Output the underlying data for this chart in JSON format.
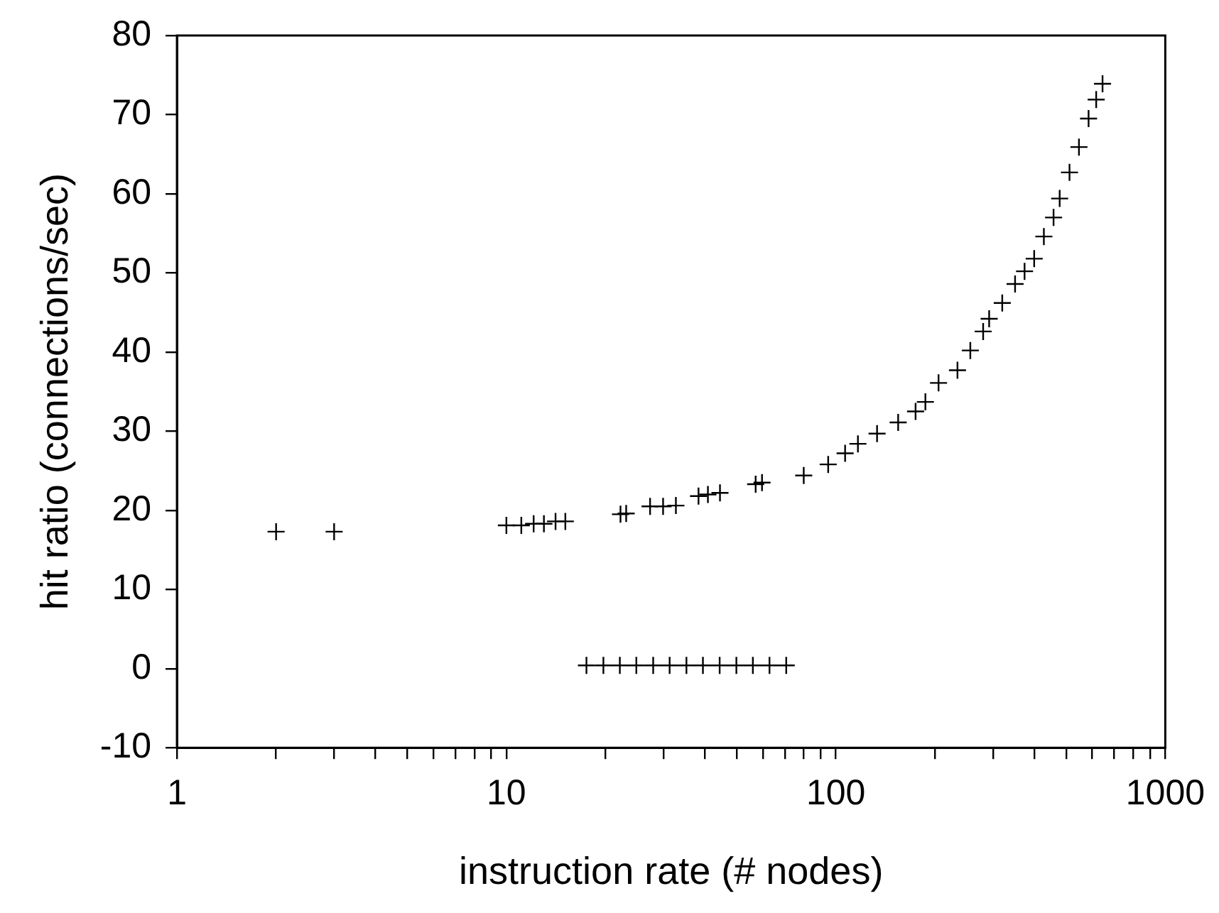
{
  "chart_data": {
    "type": "scatter",
    "xlabel": "instruction rate (# nodes)",
    "ylabel": "hit ratio (connections/sec)",
    "log": "x",
    "grid": false,
    "legend": false,
    "marker": "cross",
    "xlim": [
      1,
      1000
    ],
    "ylim": [
      -10,
      80
    ],
    "xticks": [
      1,
      {
        "value": 2,
        "label": null
      },
      {
        "value": 3,
        "label": null
      },
      {
        "value": 4,
        "label": null
      },
      {
        "value": 5,
        "label": null
      },
      {
        "value": 6,
        "label": null
      },
      {
        "value": 7,
        "label": null
      },
      {
        "value": 8,
        "label": null
      },
      {
        "value": 9,
        "label": null
      },
      10,
      {
        "value": 20,
        "label": null
      },
      {
        "value": 30,
        "label": null
      },
      {
        "value": 40,
        "label": null
      },
      {
        "value": 50,
        "label": null
      },
      {
        "value": 60,
        "label": null
      },
      {
        "value": 70,
        "label": null
      },
      {
        "value": 80,
        "label": null
      },
      {
        "value": 90,
        "label": null
      },
      100,
      {
        "value": 200,
        "label": null
      },
      {
        "value": 300,
        "label": null
      },
      {
        "value": 400,
        "label": null
      },
      {
        "value": 500,
        "label": null
      },
      {
        "value": 600,
        "label": null
      },
      {
        "value": 700,
        "label": null
      },
      {
        "value": 800,
        "label": null
      },
      {
        "value": 900,
        "label": null
      },
      1000
    ],
    "yticks": [
      -10,
      0,
      10,
      20,
      30,
      40,
      50,
      60,
      70,
      80
    ],
    "series": [
      {
        "color": "#000000",
        "x": [
          2,
          3,
          10,
          11.1,
          12.1,
          13,
          14.1,
          15.1,
          22.2,
          23.1,
          27.3,
          29.9,
          32.7,
          38.3,
          40.9,
          44.5,
          57.1,
          59.7,
          79.9,
          94.8,
          106.7,
          116.7,
          133.4,
          154.6,
          174.6,
          187,
          205,
          234,
          256,
          280,
          292,
          320,
          350,
          374,
          400,
          428,
          458,
          478,
          512,
          547,
          585,
          617,
          645
        ],
        "values": [
          17.3,
          17.3,
          18.1,
          18.1,
          18.3,
          18.3,
          18.6,
          18.6,
          19.5,
          19.6,
          20.5,
          20.5,
          20.6,
          21.8,
          22,
          22.2,
          23.3,
          23.5,
          24.4,
          25.8,
          27.2,
          28.4,
          29.7,
          31.1,
          32.5,
          33.7,
          36.1,
          37.7,
          40.2,
          42.6,
          44.2,
          46.2,
          48.6,
          50.2,
          51.8,
          54.6,
          57,
          59.4,
          62.7,
          65.9,
          69.5,
          71.9,
          73.9
        ]
      },
      {
        "color": "#000000",
        "x": [
          17.5,
          19.7,
          22.1,
          24.8,
          27.9,
          31.3,
          35.2,
          39.5,
          44.4,
          49.9,
          56,
          62.9,
          70.7
        ],
        "values": [
          0.4,
          0.4,
          0.4,
          0.4,
          0.4,
          0.4,
          0.4,
          0.4,
          0.4,
          0.4,
          0.4,
          0.4,
          0.4
        ]
      }
    ]
  }
}
